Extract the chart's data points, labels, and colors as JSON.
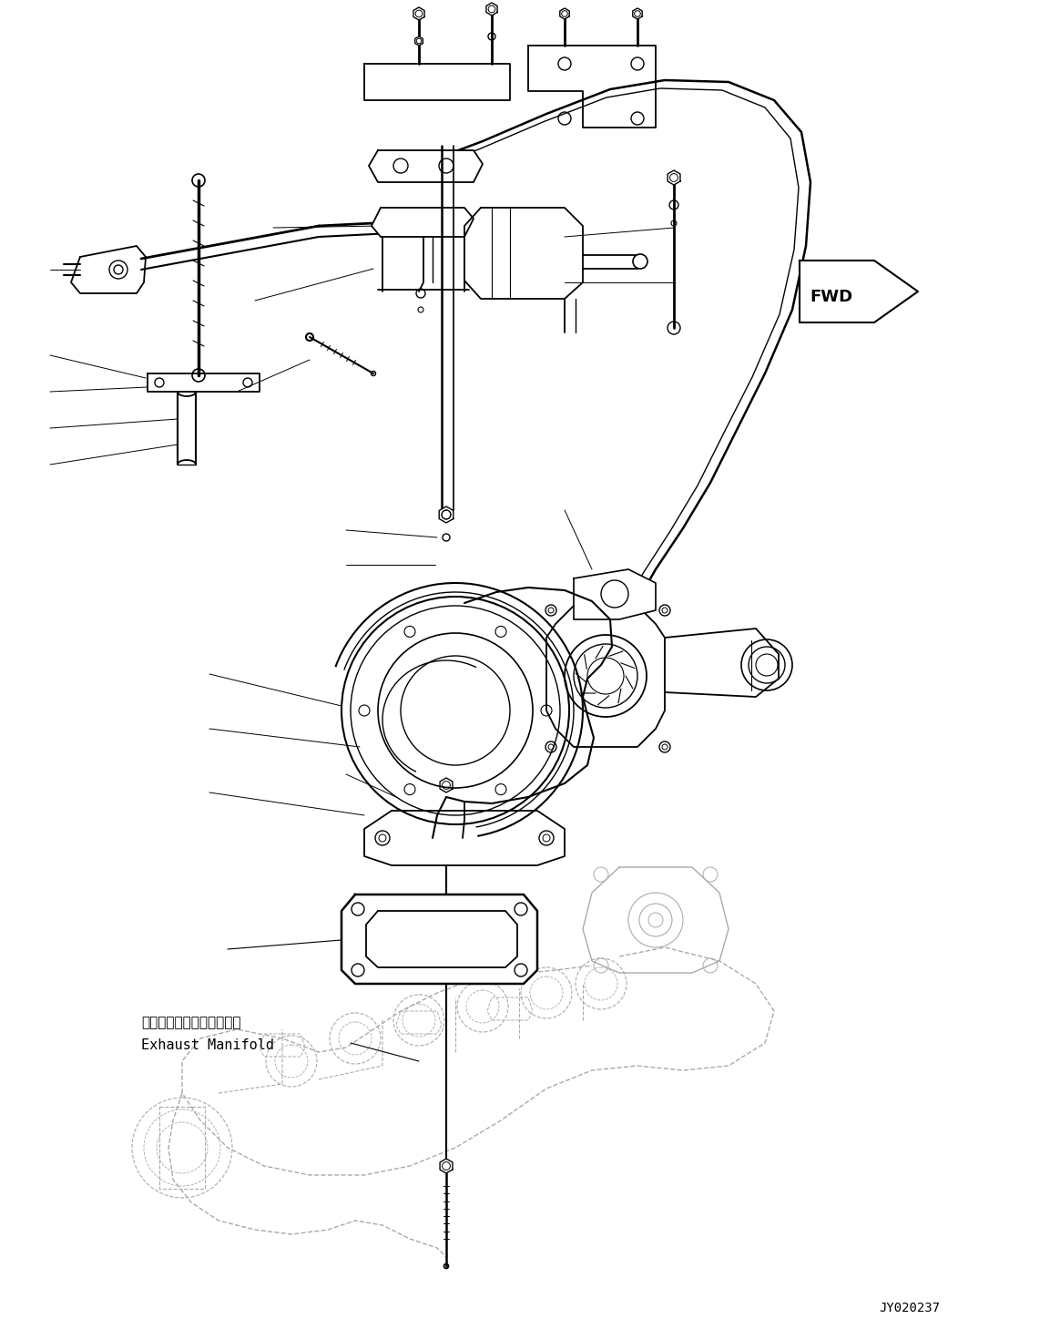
{
  "background_color": "#ffffff",
  "line_color": "#000000",
  "dashed_line_color": "#aaaaaa",
  "fig_width": 11.53,
  "fig_height": 14.59,
  "watermark": "JY020237",
  "label_exhaust_jp": "エキゾーストマニホールド",
  "label_exhaust_en": "Exhaust Manifold",
  "fwd_label": "FWD"
}
